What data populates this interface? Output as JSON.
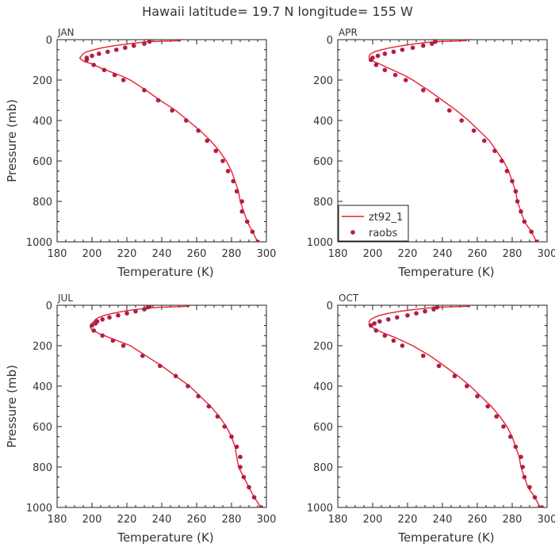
{
  "figure_title": "Hawaii  latitude= 19.7 N longitude= 155 W",
  "colors": {
    "model": "#e8232a",
    "obs": "#b01d4a",
    "axis": "#222222"
  },
  "chart_data": [
    {
      "type": "line",
      "panel": "JAN",
      "xlabel": "Temperature (K)",
      "ylabel": "Pressure (mb)",
      "xlim": [
        180,
        300
      ],
      "ylim": [
        1000,
        0
      ],
      "xticks": [
        180,
        200,
        220,
        240,
        260,
        280,
        300
      ],
      "yticks": [
        0,
        200,
        400,
        600,
        800,
        1000
      ],
      "legend": null,
      "series": [
        {
          "name": "zt92_1",
          "style": "line",
          "points": [
            [
              251,
              5
            ],
            [
              232,
              10
            ],
            [
              222,
              20
            ],
            [
              213,
              30
            ],
            [
              206,
              40
            ],
            [
              201,
              50
            ],
            [
              197,
              60
            ],
            [
              195,
              70
            ],
            [
              194,
              80
            ],
            [
              193,
              90
            ],
            [
              194,
              100
            ],
            [
              196,
              110
            ],
            [
              200,
              120
            ],
            [
              205,
              140
            ],
            [
              211,
              160
            ],
            [
              217,
              180
            ],
            [
              222,
              200
            ],
            [
              231,
              250
            ],
            [
              239,
              300
            ],
            [
              248,
              350
            ],
            [
              255,
              400
            ],
            [
              262,
              450
            ],
            [
              268,
              500
            ],
            [
              273,
              550
            ],
            [
              277,
              600
            ],
            [
              280,
              650
            ],
            [
              282,
              700
            ],
            [
              284,
              750
            ],
            [
              285,
              800
            ],
            [
              287,
              850
            ],
            [
              289,
              900
            ],
            [
              292,
              950
            ],
            [
              295,
              1000
            ]
          ]
        },
        {
          "name": "raobs",
          "style": "markers",
          "points": [
            [
              233,
              10
            ],
            [
              230,
              20
            ],
            [
              224,
              30
            ],
            [
              219,
              40
            ],
            [
              214,
              50
            ],
            [
              209,
              60
            ],
            [
              204,
              70
            ],
            [
              200,
              80
            ],
            [
              197,
              90
            ],
            [
              197,
              100
            ],
            [
              201,
              125
            ],
            [
              207,
              150
            ],
            [
              213,
              175
            ],
            [
              218,
              200
            ],
            [
              230,
              250
            ],
            [
              238,
              300
            ],
            [
              246,
              350
            ],
            [
              254,
              400
            ],
            [
              261,
              450
            ],
            [
              266,
              500
            ],
            [
              271,
              550
            ],
            [
              275,
              600
            ],
            [
              278,
              650
            ],
            [
              281,
              700
            ],
            [
              283,
              750
            ],
            [
              286,
              800
            ],
            [
              286,
              850
            ],
            [
              289,
              900
            ],
            [
              292,
              950
            ],
            [
              295,
              1000
            ]
          ]
        }
      ]
    },
    {
      "type": "line",
      "panel": "APR",
      "xlabel": "Temperature (K)",
      "ylabel": "",
      "xlim": [
        180,
        300
      ],
      "ylim": [
        1000,
        0
      ],
      "xticks": [
        180,
        200,
        220,
        240,
        260,
        280,
        300
      ],
      "yticks": [
        0,
        200,
        400,
        600,
        800,
        1000
      ],
      "legend": "lower-left",
      "series": [
        {
          "name": "zt92_1",
          "style": "line",
          "points": [
            [
              254,
              5
            ],
            [
              236,
              10
            ],
            [
              225,
              20
            ],
            [
              217,
              30
            ],
            [
              210,
              40
            ],
            [
              205,
              50
            ],
            [
              201,
              60
            ],
            [
              199,
              70
            ],
            [
              198,
              80
            ],
            [
              198,
              90
            ],
            [
              199,
              100
            ],
            [
              201,
              110
            ],
            [
              204,
              120
            ],
            [
              209,
              140
            ],
            [
              214,
              160
            ],
            [
              219,
              180
            ],
            [
              223,
              200
            ],
            [
              232,
              250
            ],
            [
              240,
              300
            ],
            [
              248,
              350
            ],
            [
              255,
              400
            ],
            [
              261,
              450
            ],
            [
              267,
              500
            ],
            [
              271,
              550
            ],
            [
              275,
              600
            ],
            [
              278,
              650
            ],
            [
              280,
              700
            ],
            [
              282,
              750
            ],
            [
              283,
              800
            ],
            [
              285,
              850
            ],
            [
              287,
              900
            ],
            [
              291,
              950
            ],
            [
              294,
              1000
            ]
          ]
        },
        {
          "name": "raobs",
          "style": "markers",
          "points": [
            [
              236,
              10
            ],
            [
              234,
              20
            ],
            [
              229,
              30
            ],
            [
              223,
              40
            ],
            [
              217,
              50
            ],
            [
              212,
              60
            ],
            [
              207,
              70
            ],
            [
              203,
              80
            ],
            [
              200,
              90
            ],
            [
              199,
              100
            ],
            [
              202,
              125
            ],
            [
              207,
              150
            ],
            [
              213,
              175
            ],
            [
              219,
              200
            ],
            [
              229,
              250
            ],
            [
              237,
              300
            ],
            [
              244,
              350
            ],
            [
              251,
              400
            ],
            [
              258,
              450
            ],
            [
              264,
              500
            ],
            [
              270,
              550
            ],
            [
              274,
              600
            ],
            [
              277,
              650
            ],
            [
              280,
              700
            ],
            [
              282,
              750
            ],
            [
              283,
              800
            ],
            [
              285,
              850
            ],
            [
              287,
              900
            ],
            [
              291,
              950
            ],
            [
              294,
              1000
            ]
          ]
        }
      ]
    },
    {
      "type": "line",
      "panel": "JUL",
      "xlabel": "Temperature (K)",
      "ylabel": "Pressure (mb)",
      "xlim": [
        180,
        300
      ],
      "ylim": [
        1000,
        0
      ],
      "xticks": [
        180,
        200,
        220,
        240,
        260,
        280,
        300
      ],
      "yticks": [
        0,
        200,
        400,
        600,
        800,
        1000
      ],
      "legend": null,
      "series": [
        {
          "name": "zt92_1",
          "style": "line",
          "points": [
            [
              256,
              5
            ],
            [
              238,
              10
            ],
            [
              226,
              20
            ],
            [
              218,
              30
            ],
            [
              212,
              40
            ],
            [
              207,
              50
            ],
            [
              204,
              60
            ],
            [
              202,
              70
            ],
            [
              201,
              80
            ],
            [
              200,
              90
            ],
            [
              199,
              100
            ],
            [
              199,
              110
            ],
            [
              200,
              120
            ],
            [
              204,
              140
            ],
            [
              210,
              160
            ],
            [
              216,
              180
            ],
            [
              222,
              200
            ],
            [
              231,
              250
            ],
            [
              240,
              300
            ],
            [
              248,
              350
            ],
            [
              256,
              400
            ],
            [
              262,
              450
            ],
            [
              268,
              500
            ],
            [
              273,
              550
            ],
            [
              277,
              600
            ],
            [
              280,
              650
            ],
            [
              282,
              700
            ],
            [
              283,
              750
            ],
            [
              284,
              800
            ],
            [
              287,
              850
            ],
            [
              290,
              900
            ],
            [
              293,
              950
            ],
            [
              297,
              1000
            ]
          ]
        },
        {
          "name": "raobs",
          "style": "markers",
          "points": [
            [
              233,
              5
            ],
            [
              232,
              10
            ],
            [
              230,
              20
            ],
            [
              225,
              30
            ],
            [
              220,
              40
            ],
            [
              215,
              50
            ],
            [
              210,
              60
            ],
            [
              206,
              70
            ],
            [
              203,
              80
            ],
            [
              202,
              90
            ],
            [
              200,
              100
            ],
            [
              201,
              125
            ],
            [
              206,
              150
            ],
            [
              212,
              175
            ],
            [
              218,
              200
            ],
            [
              229,
              250
            ],
            [
              239,
              300
            ],
            [
              248,
              350
            ],
            [
              255,
              400
            ],
            [
              261,
              450
            ],
            [
              267,
              500
            ],
            [
              272,
              550
            ],
            [
              276,
              600
            ],
            [
              280,
              650
            ],
            [
              283,
              700
            ],
            [
              285,
              750
            ],
            [
              285,
              800
            ],
            [
              287,
              850
            ],
            [
              290,
              900
            ],
            [
              293,
              950
            ],
            [
              297,
              1000
            ]
          ]
        }
      ]
    },
    {
      "type": "line",
      "panel": "OCT",
      "xlabel": "Temperature (K)",
      "ylabel": "",
      "xlim": [
        180,
        300
      ],
      "ylim": [
        1000,
        0
      ],
      "xticks": [
        180,
        200,
        220,
        240,
        260,
        280,
        300
      ],
      "yticks": [
        0,
        200,
        400,
        600,
        800,
        1000
      ],
      "legend": null,
      "series": [
        {
          "name": "zt92_1",
          "style": "line",
          "points": [
            [
              256,
              5
            ],
            [
              236,
              10
            ],
            [
              225,
              20
            ],
            [
              216,
              30
            ],
            [
              209,
              40
            ],
            [
              204,
              50
            ],
            [
              201,
              60
            ],
            [
              199,
              70
            ],
            [
              198,
              80
            ],
            [
              198,
              90
            ],
            [
              198,
              100
            ],
            [
              200,
              110
            ],
            [
              202,
              120
            ],
            [
              207,
              140
            ],
            [
              213,
              160
            ],
            [
              218,
              180
            ],
            [
              223,
              200
            ],
            [
              233,
              250
            ],
            [
              241,
              300
            ],
            [
              249,
              350
            ],
            [
              256,
              400
            ],
            [
              262,
              450
            ],
            [
              268,
              500
            ],
            [
              273,
              550
            ],
            [
              277,
              600
            ],
            [
              280,
              650
            ],
            [
              282,
              700
            ],
            [
              284,
              750
            ],
            [
              285,
              800
            ],
            [
              287,
              850
            ],
            [
              289,
              900
            ],
            [
              293,
              950
            ],
            [
              296,
              1000
            ]
          ]
        },
        {
          "name": "raobs",
          "style": "markers",
          "points": [
            [
              237,
              10
            ],
            [
              235,
              20
            ],
            [
              230,
              30
            ],
            [
              225,
              40
            ],
            [
              220,
              50
            ],
            [
              214,
              60
            ],
            [
              209,
              70
            ],
            [
              204,
              80
            ],
            [
              201,
              90
            ],
            [
              199,
              100
            ],
            [
              202,
              125
            ],
            [
              207,
              150
            ],
            [
              212,
              175
            ],
            [
              217,
              200
            ],
            [
              229,
              250
            ],
            [
              238,
              300
            ],
            [
              247,
              350
            ],
            [
              254,
              400
            ],
            [
              260,
              450
            ],
            [
              266,
              500
            ],
            [
              271,
              550
            ],
            [
              275,
              600
            ],
            [
              279,
              650
            ],
            [
              282,
              700
            ],
            [
              285,
              750
            ],
            [
              286,
              800
            ],
            [
              287,
              850
            ],
            [
              290,
              900
            ],
            [
              293,
              950
            ],
            [
              297,
              1000
            ]
          ]
        }
      ]
    }
  ]
}
